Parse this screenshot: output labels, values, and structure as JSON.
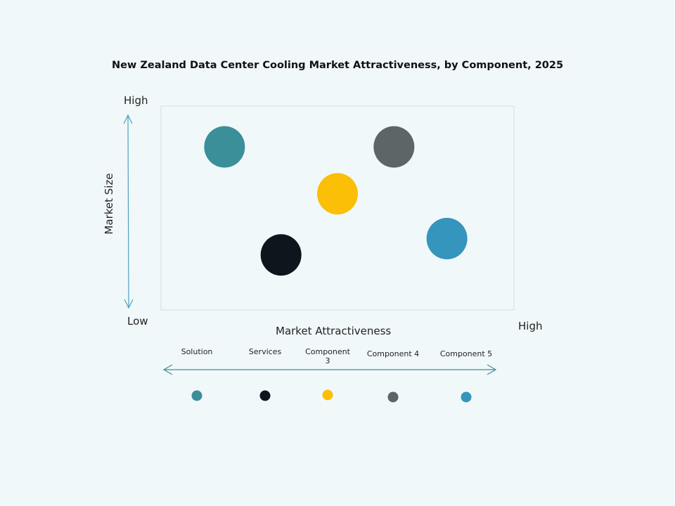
{
  "chart_data": {
    "type": "scatter",
    "title": "New Zealand Data Center Cooling Market Attractiveness,  by Component, 2025",
    "xlabel": "Market Attractiveness",
    "ylabel": "Market Size",
    "x_low_label": "Low",
    "x_high_label": "High",
    "y_high_label": "High",
    "xlim": [
      0,
      10
    ],
    "ylim": [
      0,
      10
    ],
    "grid": false,
    "legend_placement": "bottom",
    "series": [
      {
        "name": "Solution",
        "x": 1.8,
        "y": 8.0,
        "color": "#3a8f98"
      },
      {
        "name": "Services",
        "x": 3.4,
        "y": 2.7,
        "color": "#0f151d"
      },
      {
        "name": "Component 3",
        "x": 5.0,
        "y": 5.7,
        "color": "#fbbf08"
      },
      {
        "name": "Component 4",
        "x": 6.6,
        "y": 8.0,
        "color": "#5c6667"
      },
      {
        "name": "Component 5",
        "x": 8.1,
        "y": 3.5,
        "color": "#3595bc"
      }
    ]
  }
}
